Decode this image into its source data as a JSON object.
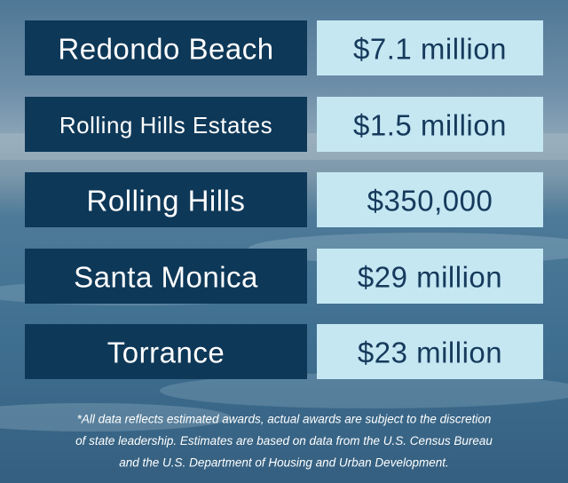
{
  "table": {
    "rows": [
      [
        "Redondo Beach",
        "$7.1 million"
      ],
      [
        "Rolling Hills Estates",
        "$1.5 million"
      ],
      [
        "Rolling Hills",
        "$350,000"
      ],
      [
        "Santa Monica",
        "$29 million"
      ],
      [
        "Torrance",
        "$23 million"
      ]
    ]
  },
  "footnote": {
    "lines": [
      "*All data reflects estimated awards, actual awards are subject to the discretion",
      "of state leadership. Estimates are based on data from the U.S. Census Bureau",
      "and the U.S. Department of Housing and Urban Development."
    ]
  }
}
